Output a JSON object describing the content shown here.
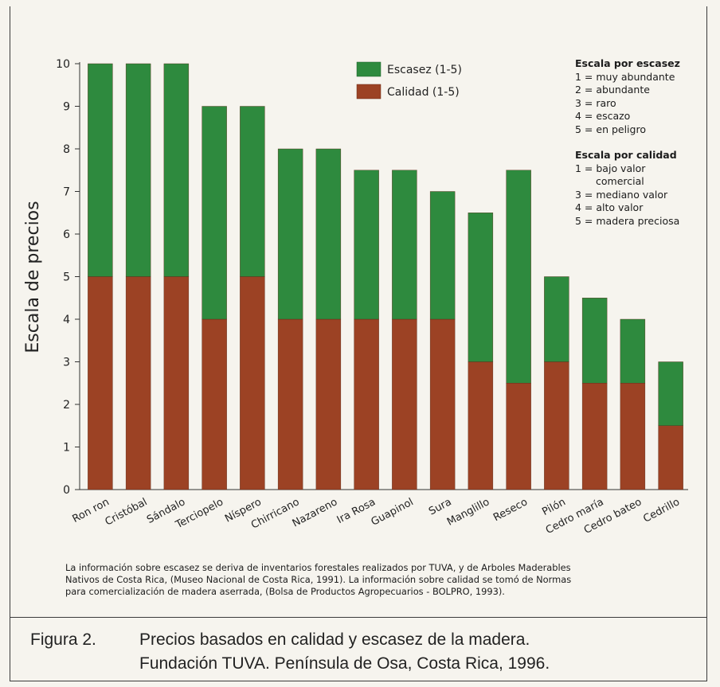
{
  "chart_data": {
    "type": "bar",
    "stacked": true,
    "categories": [
      "Ron ron",
      "Cristóbal",
      "Sándalo",
      "Terciopelo",
      "Níspero",
      "Chirricano",
      "Nazareno",
      "Ira Rosa",
      "Guapinol",
      "Sura",
      "Manglillo",
      "Reseco",
      "Pilón",
      "Cedro maría",
      "Cedro bateo",
      "Cedrillo"
    ],
    "series": [
      {
        "name": "Calidad (1-5)",
        "color": "#9c4224",
        "values": [
          5,
          5,
          5,
          4,
          5,
          4,
          4,
          4,
          4,
          4,
          3,
          2.5,
          3,
          2.5,
          2.5,
          1.5
        ]
      },
      {
        "name": "Escasez (1-5)",
        "color": "#2e8a3e",
        "values": [
          5,
          5,
          5,
          5,
          4,
          4,
          4,
          3.5,
          3.5,
          3,
          3.5,
          5,
          2,
          2,
          1.5,
          1.5
        ]
      }
    ],
    "ylabel": "Escala de precios",
    "ylim": [
      0,
      10
    ],
    "yticks": [
      0,
      1,
      2,
      3,
      4,
      5,
      6,
      7,
      8,
      9,
      10
    ],
    "legend_position": "top-center",
    "grid": false
  },
  "notes": {
    "scarcity_title": "Escala por escasez",
    "scarcity_items": [
      "1 = muy abundante",
      "2 = abundante",
      "3 = raro",
      "4 = escazo",
      "5 = en peligro"
    ],
    "quality_title": "Escala por calidad",
    "quality_items": [
      "1 = bajo valor",
      "comercial",
      "3 = mediano valor",
      "4 = alto valor",
      "5 = madera preciosa"
    ]
  },
  "footnote": {
    "line1": "La información sobre escasez se deriva de inventarios forestales realizados por TUVA, y de Arboles Maderables",
    "line2": "Nativos de Costa Rica, (Museo Nacional de Costa Rica, 1991).  La información sobre calidad se tomó de Normas",
    "line3": "para comercialización de madera aserrada, (Bolsa de Productos Agropecuarios - BOLPRO, 1993)."
  },
  "caption": {
    "label": "Figura 2.",
    "line1": "Precios basados en calidad y escasez de la madera.",
    "line2": "Fundación TUVA.  Península de Osa, Costa Rica, 1996."
  }
}
